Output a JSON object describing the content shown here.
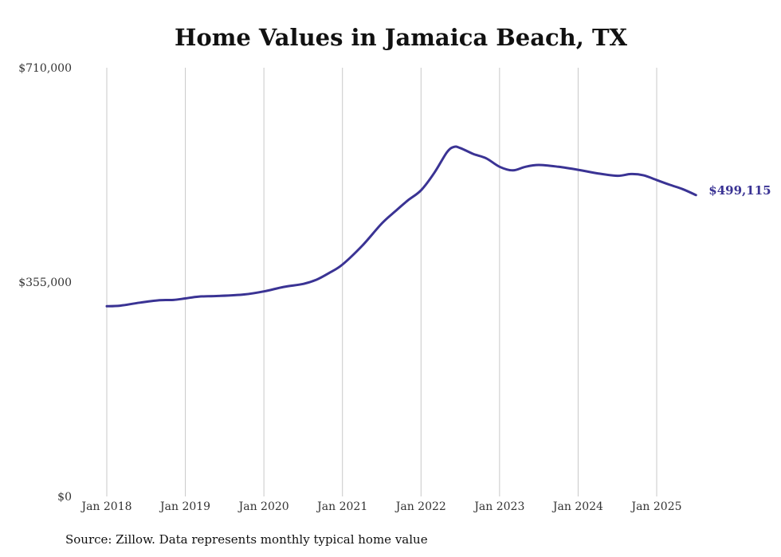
{
  "title": "Home Values in Jamaica Beach, TX",
  "source": "Source: Zillow. Data represents monthly typical home value",
  "colors": {
    "line": "#3a3394",
    "grid": "#c8c8c8",
    "text": "#333333"
  },
  "chart_data": {
    "type": "line",
    "title": "Home Values in Jamaica Beach, TX",
    "xlabel": "",
    "ylabel": "",
    "ylim": [
      0,
      710000
    ],
    "y_ticks": [
      {
        "value": 0,
        "label": "$0"
      },
      {
        "value": 355000,
        "label": "$355,000"
      },
      {
        "value": 710000,
        "label": "$710,000"
      }
    ],
    "x_ticks": [
      {
        "value": 2018,
        "label": "Jan 2018"
      },
      {
        "value": 2019,
        "label": "Jan 2019"
      },
      {
        "value": 2020,
        "label": "Jan 2020"
      },
      {
        "value": 2021,
        "label": "Jan 2021"
      },
      {
        "value": 2022,
        "label": "Jan 2022"
      },
      {
        "value": 2023,
        "label": "Jan 2023"
      },
      {
        "value": 2024,
        "label": "Jan 2024"
      },
      {
        "value": 2025,
        "label": "Jan 2025"
      }
    ],
    "grid": "vertical",
    "end_label": "$499,115",
    "series": [
      {
        "points": [
          [
            2018.0,
            315000
          ],
          [
            2018.17,
            316000
          ],
          [
            2018.42,
            321000
          ],
          [
            2018.67,
            325000
          ],
          [
            2018.85,
            325500
          ],
          [
            2019.0,
            328000
          ],
          [
            2019.17,
            331000
          ],
          [
            2019.42,
            332000
          ],
          [
            2019.75,
            334500
          ],
          [
            2020.0,
            339500
          ],
          [
            2020.25,
            347000
          ],
          [
            2020.5,
            352000
          ],
          [
            2020.67,
            359000
          ],
          [
            2020.83,
            370000
          ],
          [
            2021.0,
            384000
          ],
          [
            2021.25,
            415000
          ],
          [
            2021.5,
            452000
          ],
          [
            2021.67,
            472000
          ],
          [
            2021.83,
            490000
          ],
          [
            2022.0,
            507000
          ],
          [
            2022.17,
            536000
          ],
          [
            2022.33,
            570000
          ],
          [
            2022.42,
            579000
          ],
          [
            2022.5,
            577000
          ],
          [
            2022.67,
            567000
          ],
          [
            2022.83,
            560000
          ],
          [
            2023.0,
            546000
          ],
          [
            2023.17,
            540000
          ],
          [
            2023.33,
            546000
          ],
          [
            2023.5,
            549000
          ],
          [
            2023.75,
            546000
          ],
          [
            2024.0,
            541000
          ],
          [
            2024.25,
            535000
          ],
          [
            2024.5,
            531000
          ],
          [
            2024.67,
            534000
          ],
          [
            2024.83,
            532000
          ],
          [
            2025.0,
            524000
          ],
          [
            2025.17,
            516000
          ],
          [
            2025.33,
            509000
          ],
          [
            2025.5,
            499115
          ]
        ]
      }
    ]
  }
}
